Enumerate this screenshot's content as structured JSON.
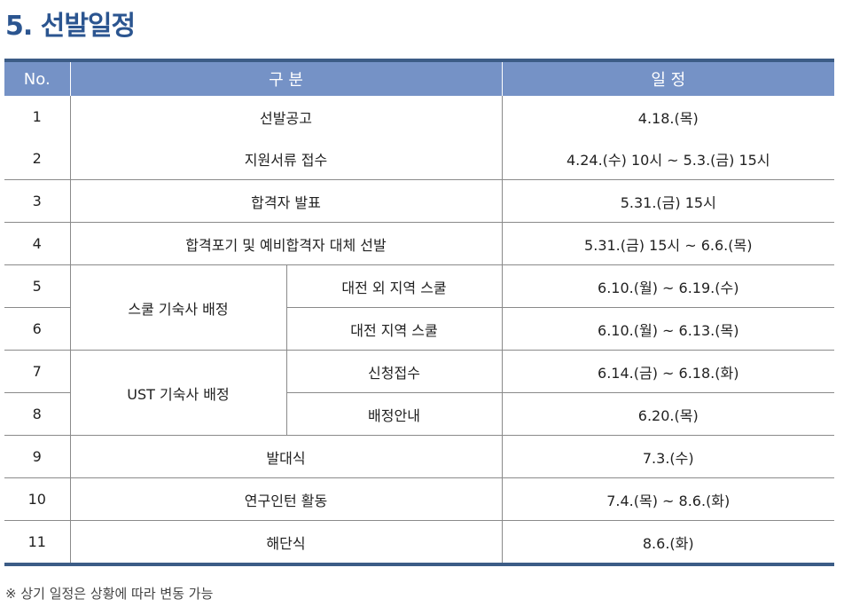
{
  "title": "5. 선발일정",
  "table": {
    "headers": {
      "no": "No.",
      "category": "구 분",
      "schedule": "일 정"
    },
    "rows": [
      {
        "no": "1",
        "category": "선발공고",
        "schedule": "4.18.(목)"
      },
      {
        "no": "2",
        "category": "지원서류 접수",
        "schedule": "4.24.(수) 10시 ~ 5.3.(금) 15시"
      },
      {
        "no": "3",
        "category": "합격자 발표",
        "schedule": "5.31.(금) 15시"
      },
      {
        "no": "4",
        "category": "합격포기 및 예비합격자 대체 선발",
        "schedule": "5.31.(금) 15시 ~ 6.6.(목)"
      },
      {
        "no": "5",
        "group": "스쿨 기숙사 배정",
        "category": "대전 외 지역 스쿨",
        "schedule": "6.10.(월) ~ 6.19.(수)"
      },
      {
        "no": "6",
        "category": "대전 지역 스쿨",
        "schedule": "6.10.(월) ~ 6.13.(목)"
      },
      {
        "no": "7",
        "group": "UST 기숙사 배정",
        "category": "신청접수",
        "schedule": "6.14.(금) ~ 6.18.(화)"
      },
      {
        "no": "8",
        "category": "배정안내",
        "schedule": "6.20.(목)"
      },
      {
        "no": "9",
        "category": "발대식",
        "schedule": "7.3.(수)"
      },
      {
        "no": "10",
        "category": "연구인턴 활동",
        "schedule": "7.4.(목) ~ 8.6.(화)"
      },
      {
        "no": "11",
        "category": "해단식",
        "schedule": "8.6.(화)"
      }
    ]
  },
  "note": "※ 상기 일정은 상황에 따라 변동 가능",
  "colors": {
    "title": "#2b5590",
    "header_bg": "#7592c6",
    "border_accent": "#3c5c86"
  }
}
